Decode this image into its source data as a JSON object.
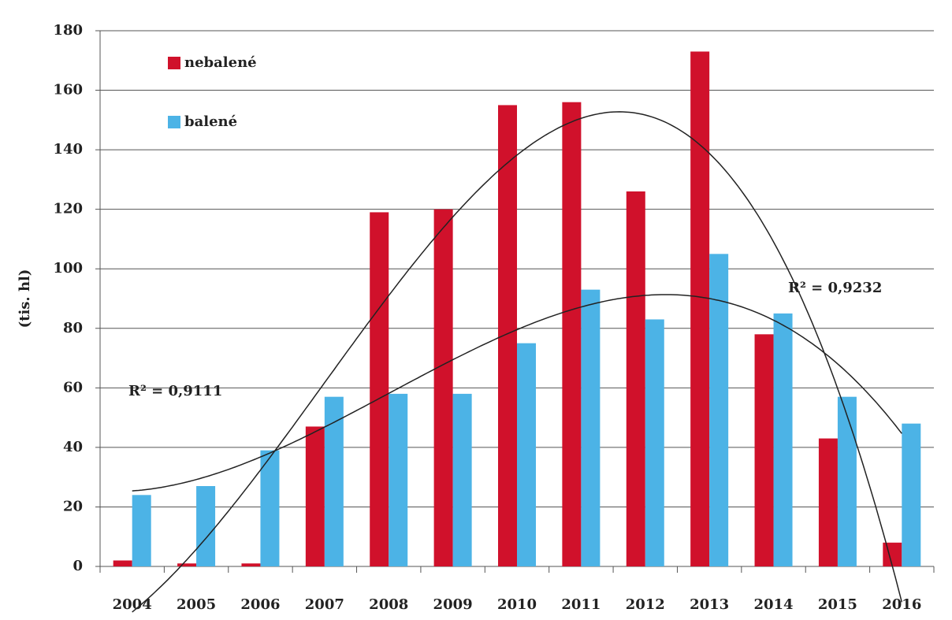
{
  "chart_data": {
    "type": "bar",
    "y_label": "(tis. hl)",
    "categories": [
      "2004",
      "2005",
      "2006",
      "2007",
      "2008",
      "2009",
      "2010",
      "2011",
      "2012",
      "2013",
      "2014",
      "2015",
      "2016"
    ],
    "series": [
      {
        "name": "nebalené",
        "color": "#d0112b",
        "values": [
          2,
          1,
          1,
          47,
          119,
          120,
          155,
          156,
          126,
          173,
          78,
          43,
          8
        ]
      },
      {
        "name": "balené",
        "color": "#4cb3e6",
        "values": [
          24,
          27,
          39,
          57,
          58,
          58,
          75,
          93,
          83,
          105,
          85,
          57,
          48
        ]
      }
    ],
    "annotations": [
      "R² = 0,9111",
      "R² = 0,9232"
    ],
    "ylim": [
      0,
      180
    ],
    "yticks": [
      0,
      20,
      40,
      60,
      80,
      100,
      120,
      140,
      160,
      180
    ],
    "grid": true,
    "legend": "top-left",
    "trendline_order": 3
  }
}
